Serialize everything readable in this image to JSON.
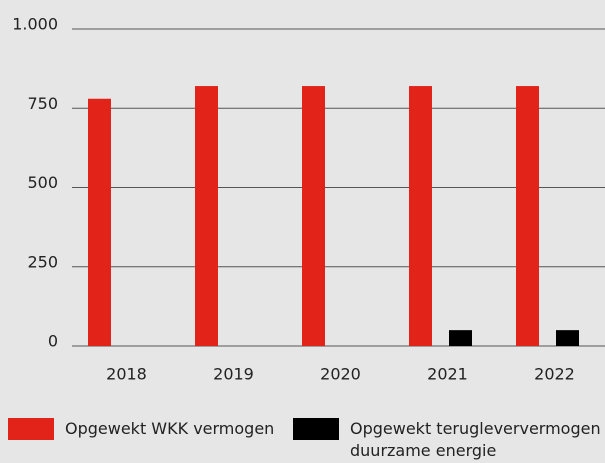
{
  "chart_data": {
    "type": "bar",
    "categories": [
      "2018",
      "2019",
      "2020",
      "2021",
      "2022"
    ],
    "series": [
      {
        "name": "Opgewekt WKK vermogen",
        "color": "#e2231a",
        "values": [
          780,
          820,
          820,
          820,
          820
        ]
      },
      {
        "name": "Opgewekt terugleververmogen duurzame energie",
        "color": "#000000",
        "values": [
          0,
          0,
          0,
          50,
          50
        ]
      }
    ],
    "ylim": [
      0,
      1000
    ],
    "yticks": [
      0,
      250,
      500,
      750,
      {
        "value": 1000,
        "label": "1.000"
      }
    ],
    "grid": true
  }
}
